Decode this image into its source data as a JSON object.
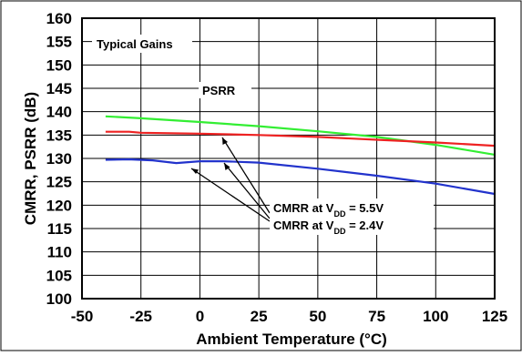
{
  "chart_data": {
    "type": "line",
    "title": "",
    "annotation_box": "Typical Gains",
    "xlabel": "Ambient Temperature (°C)",
    "ylabel": "CMRR, PSRR (dB)",
    "xlim": [
      -50,
      125
    ],
    "ylim": [
      100,
      160
    ],
    "xticks": [
      "-50",
      "-25",
      "0",
      "25",
      "50",
      "75",
      "100",
      "125"
    ],
    "yticks": [
      "100",
      "105",
      "110",
      "115",
      "120",
      "125",
      "130",
      "135",
      "140",
      "145",
      "150",
      "155",
      "160"
    ],
    "grid": true,
    "series": [
      {
        "name": "PSRR",
        "color": "#33ee33",
        "x": [
          -40,
          -25,
          0,
          25,
          50,
          75,
          100,
          125
        ],
        "y": [
          139.0,
          138.6,
          137.8,
          136.9,
          135.8,
          134.6,
          132.9,
          130.8
        ]
      },
      {
        "name": "CMRR at VDD = 5.5V",
        "color": "#ee2222",
        "x": [
          -40,
          -30,
          -25,
          0,
          25,
          50,
          75,
          100,
          125
        ],
        "y": [
          135.7,
          135.7,
          135.5,
          135.3,
          135.0,
          134.6,
          134.0,
          133.4,
          132.7
        ]
      },
      {
        "name": "CMRR at VDD = 2.4V",
        "color": "#2233cc",
        "x": [
          -40,
          -30,
          -20,
          -10,
          0,
          10,
          25,
          50,
          75,
          100,
          125
        ],
        "y": [
          129.7,
          129.8,
          129.6,
          129.0,
          129.4,
          129.4,
          129.1,
          127.8,
          126.3,
          124.6,
          122.4
        ]
      }
    ],
    "labels": {
      "psrr": "PSRR",
      "cmrr_55_prefix": "CMRR at V",
      "cmrr_55_sub": "DD",
      "cmrr_55_suffix": " = 5.5V",
      "cmrr_24_prefix": "CMRR at V",
      "cmrr_24_sub": "DD",
      "cmrr_24_suffix": " = 2.4V"
    }
  }
}
